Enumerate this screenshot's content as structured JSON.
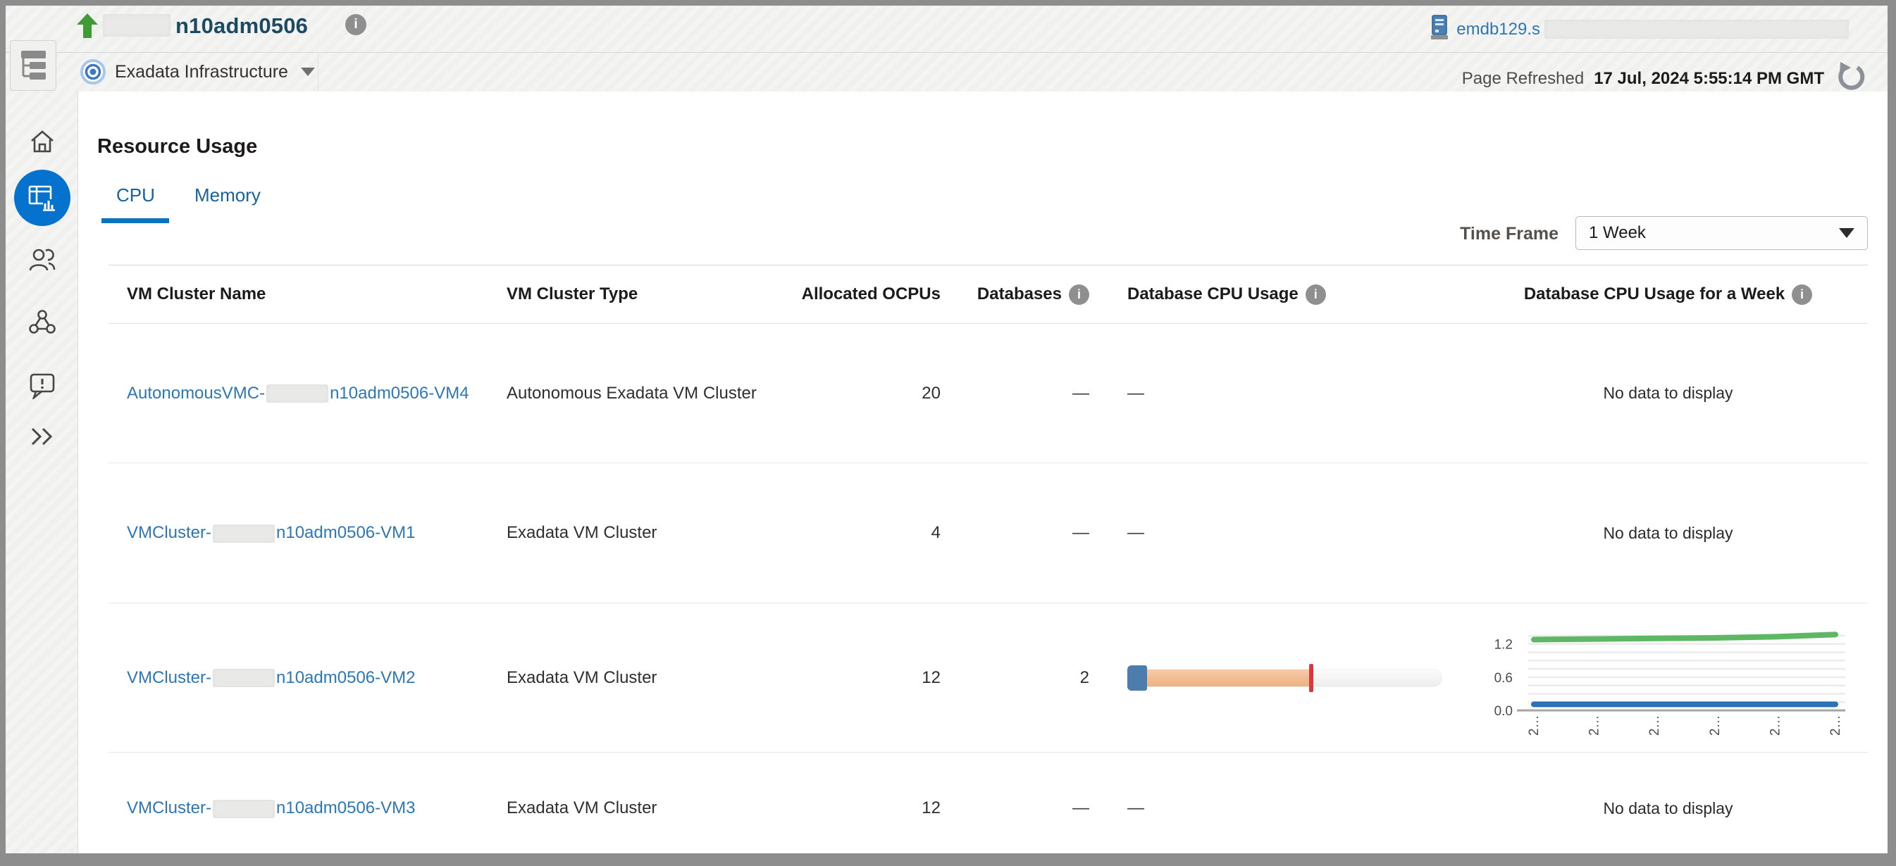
{
  "colors": {
    "accent_blue": "#0572ce",
    "link_blue": "#2e77b5",
    "title_navy": "#1d4a63",
    "green_arrow": "#3f9c35",
    "bar_blue": "#4d7dac",
    "bar_orange": "#eeb183",
    "bar_red": "#d63a3f",
    "line_green": "#5db763",
    "line_blue": "#2a72b5"
  },
  "header": {
    "title": "n10adm0506",
    "host_link_prefix": "emdb129.s",
    "target_type": "Exadata Infrastructure",
    "page_refreshed_label": "Page Refreshed",
    "page_refreshed_time": "17 Jul, 2024 5:55:14 PM GMT"
  },
  "sidebar": {
    "items": [
      {
        "name": "home"
      },
      {
        "name": "resource-usage",
        "active": true
      },
      {
        "name": "members"
      },
      {
        "name": "topology"
      },
      {
        "name": "incidents"
      },
      {
        "name": "expand"
      }
    ]
  },
  "main": {
    "section_title": "Resource Usage",
    "tabs": [
      {
        "label": "CPU",
        "active": true
      },
      {
        "label": "Memory",
        "active": false
      }
    ],
    "time_frame_label": "Time Frame",
    "time_frame_value": "1 Week"
  },
  "table": {
    "columns": [
      {
        "label": "VM Cluster Name",
        "info": false
      },
      {
        "label": "VM Cluster Type",
        "info": false
      },
      {
        "label": "Allocated OCPUs",
        "info": false
      },
      {
        "label": "Databases",
        "info": true
      },
      {
        "label": "Database CPU Usage",
        "info": true
      },
      {
        "label": "Database CPU Usage for a Week",
        "info": true
      }
    ],
    "rows": [
      {
        "name_prefix": "AutonomousVMC-",
        "name_suffix": "n10adm0506-VM4",
        "type": "Autonomous Exadata VM Cluster",
        "ocpus": "20",
        "databases": "—",
        "cpu_usage": "—",
        "week": "No data to display"
      },
      {
        "name_prefix": "VMCluster-",
        "name_suffix": "n10adm0506-VM1",
        "type": "Exadata VM Cluster",
        "ocpus": "4",
        "databases": "—",
        "cpu_usage": "—",
        "week": "No data to display"
      },
      {
        "name_prefix": "VMCluster-",
        "name_suffix": "n10adm0506-VM2",
        "type": "Exadata VM Cluster",
        "ocpus": "12",
        "databases": "2",
        "cpu_usage": "",
        "week": ""
      },
      {
        "name_prefix": "VMCluster-",
        "name_suffix": "n10adm0506-VM3",
        "type": "Exadata VM Cluster",
        "ocpus": "12",
        "databases": "—",
        "cpu_usage": "—",
        "week": "No data to display"
      }
    ]
  },
  "cpu_usage_bar": {
    "segments": [
      {
        "name": "allocated-cap",
        "color": "#4d7dac",
        "pct": 6.3
      },
      {
        "name": "usage-fill",
        "color": "#eeb183",
        "pct": 51.5
      }
    ],
    "marker_pct": 57.8,
    "marker_color": "#d63a3f"
  },
  "chart_data": {
    "type": "line",
    "title": "Database CPU Usage for a Week (VMCluster-…-VM2)",
    "x_labels": [
      "2…",
      "2…",
      "2…",
      "2…",
      "2…",
      "2…"
    ],
    "yticks": [
      "0.0",
      "0.6",
      "1.2"
    ],
    "ylim": [
      0,
      1.45
    ],
    "grid": true,
    "legend": "none",
    "series": [
      {
        "name": "cpu-total",
        "color": "#5db763",
        "values": [
          1.28,
          1.29,
          1.3,
          1.31,
          1.33,
          1.37
        ]
      },
      {
        "name": "cpu-used",
        "color": "#2a72b5",
        "values": [
          0.11,
          0.11,
          0.11,
          0.11,
          0.11,
          0.11
        ]
      }
    ]
  }
}
